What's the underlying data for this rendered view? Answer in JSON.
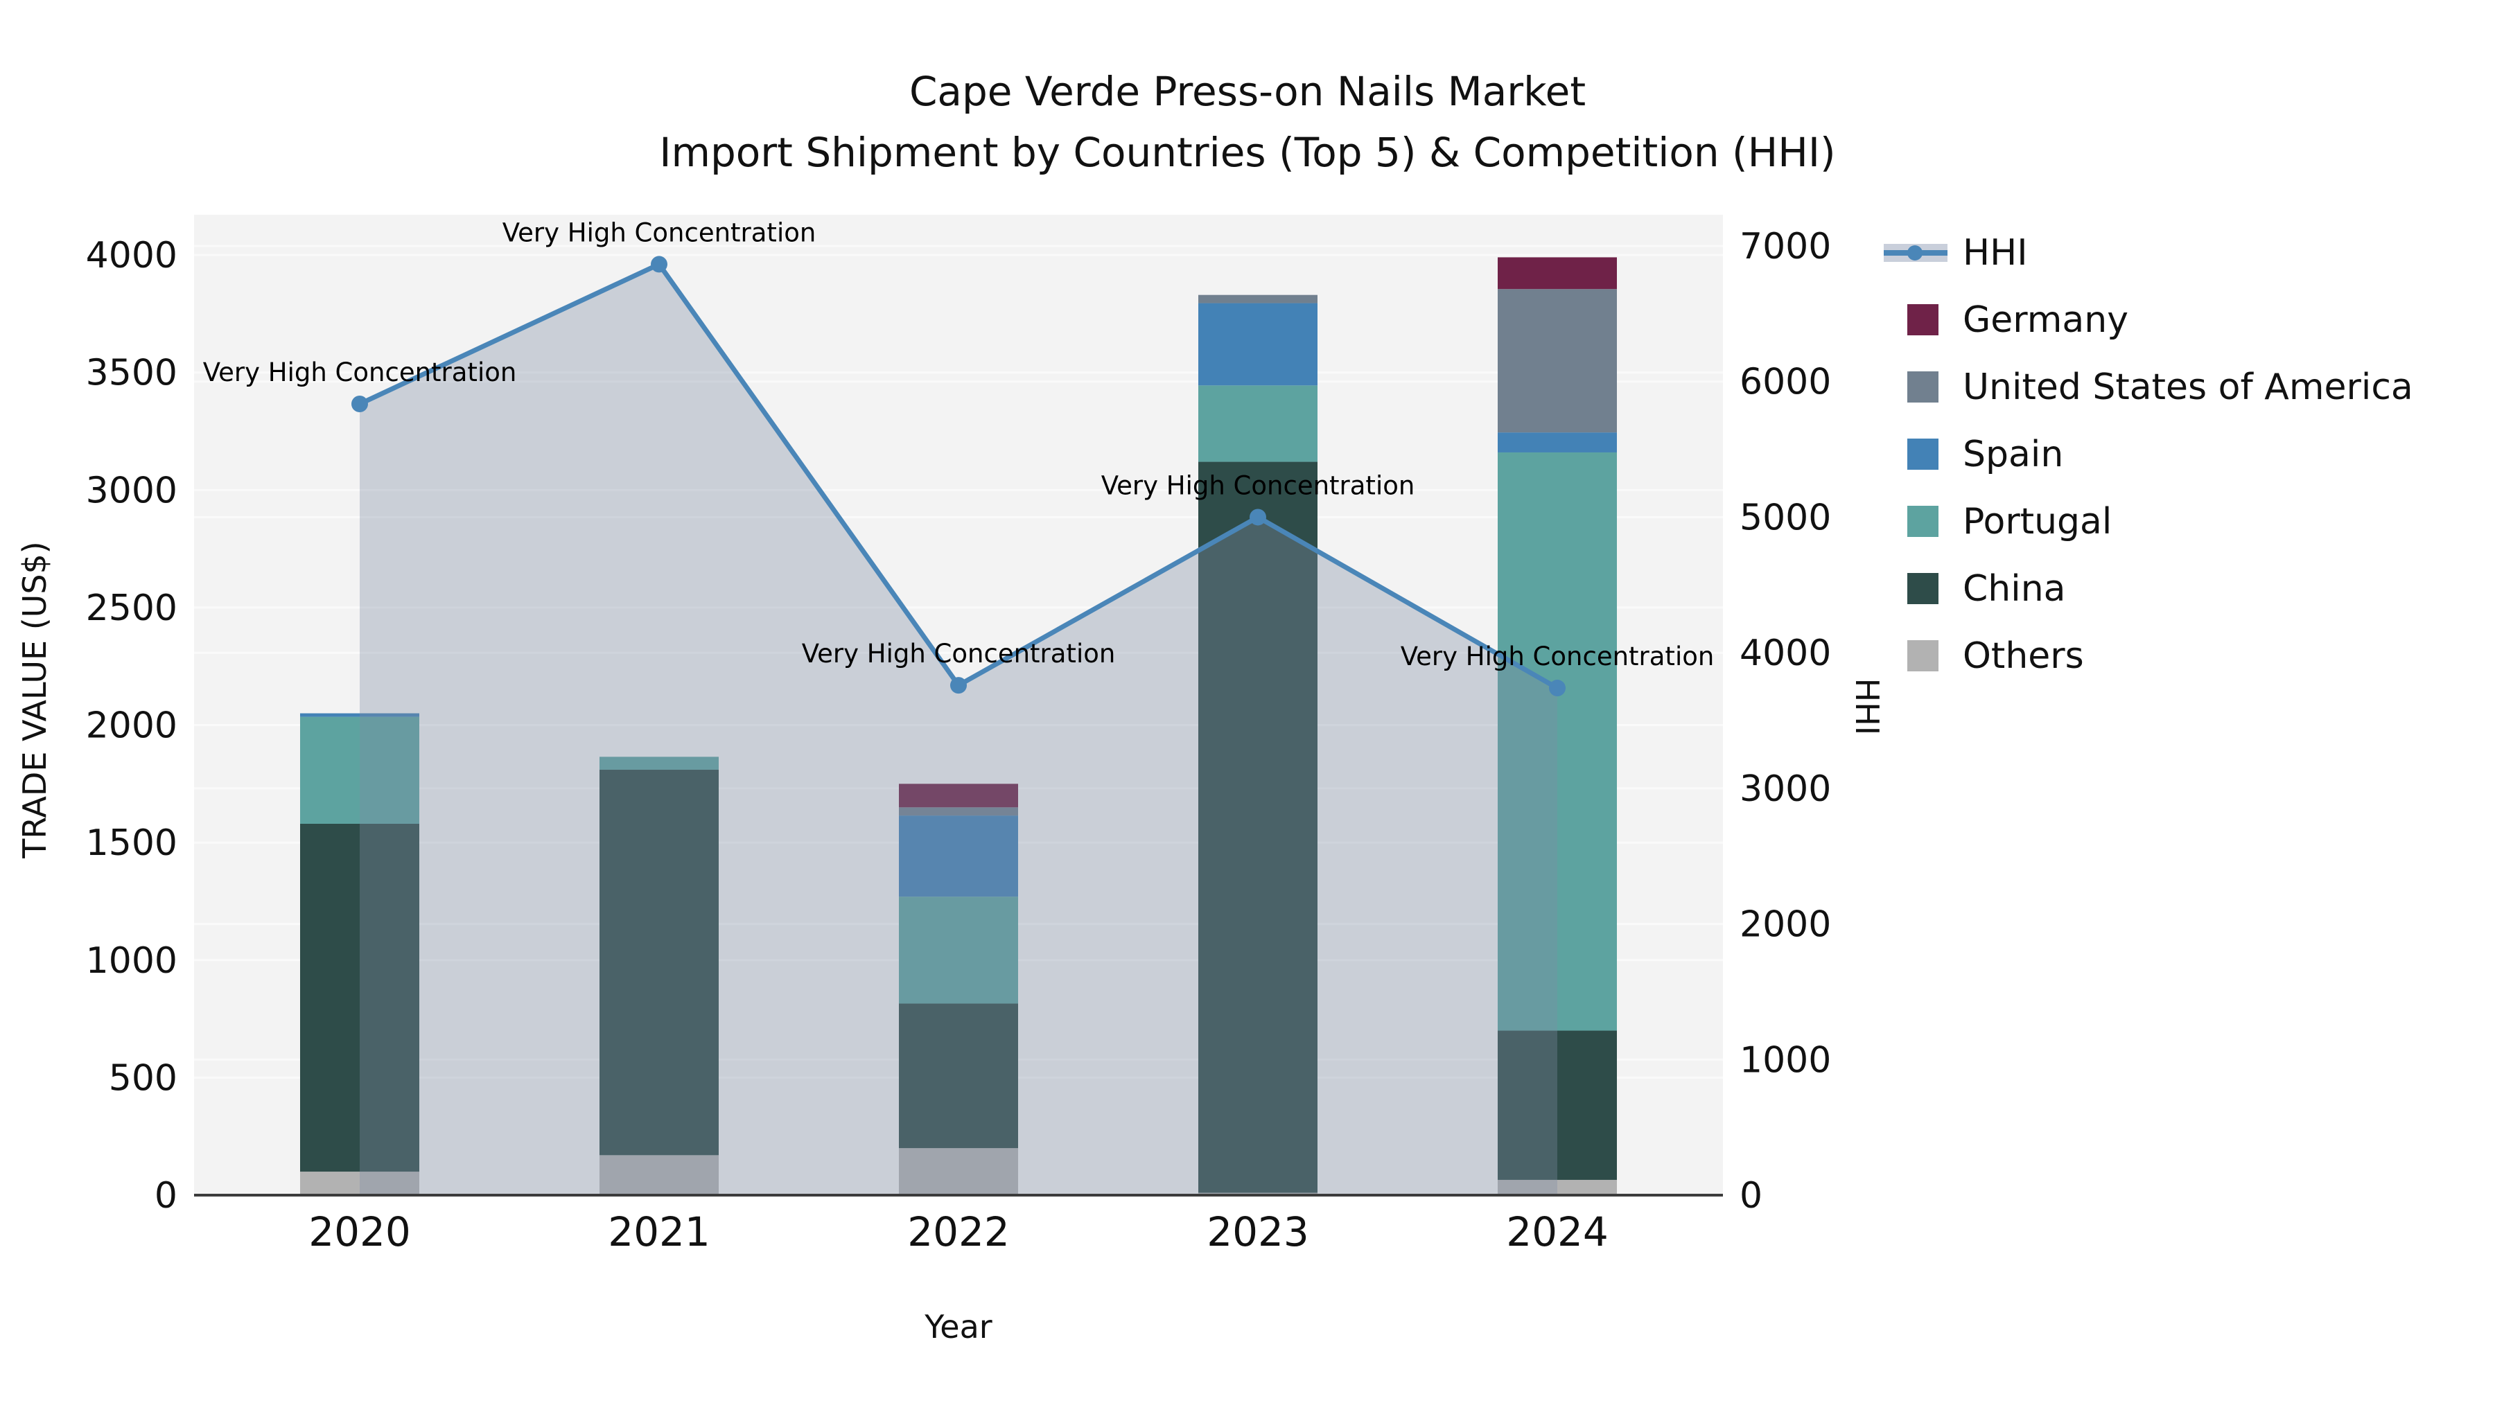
{
  "title": {
    "line1": "Cape Verde Press-on Nails Market",
    "line2": "Import Shipment by Countries (Top 5) & Competition (HHI)"
  },
  "axes": {
    "xlabel": "Year",
    "ylabel_left": "TRADE VALUE (US$)",
    "ylabel_right": "HHI"
  },
  "annotation_text": "Very High Concentration",
  "colors": {
    "hhi_line": "#4a86b8",
    "hhi_area": "#7e8ba4",
    "plot_background": "#f3f3f3",
    "gridline": "#fafafa",
    "axis_line": "#3c3c3c",
    "text": "#111111"
  },
  "legend": [
    {
      "label": "HHI",
      "type": "line",
      "color": "#4a86b8"
    },
    {
      "label": "Germany",
      "type": "swatch",
      "color": "#6f2248"
    },
    {
      "label": "United States of America",
      "type": "swatch",
      "color": "#71808f"
    },
    {
      "label": "Spain",
      "type": "swatch",
      "color": "#4382b6"
    },
    {
      "label": "Portugal",
      "type": "swatch",
      "color": "#5da3a0"
    },
    {
      "label": "China",
      "type": "swatch",
      "color": "#2e4c49"
    },
    {
      "label": "Others",
      "type": "swatch",
      "color": "#b2b2b2"
    }
  ],
  "chart_data": {
    "type": "bar",
    "subtype": "stacked-bars-with-line-overlay",
    "title": "Cape Verde Press-on Nails Market — Import Shipment by Countries (Top 5) & Competition (HHI)",
    "categories": [
      "2020",
      "2021",
      "2022",
      "2023",
      "2024"
    ],
    "series": [
      {
        "name": "Others",
        "color": "#b2b2b2",
        "values": [
          100,
          170,
          200,
          10,
          65
        ]
      },
      {
        "name": "China",
        "color": "#2e4c49",
        "values": [
          1480,
          1640,
          615,
          3110,
          635
        ]
      },
      {
        "name": "Portugal",
        "color": "#5da3a0",
        "values": [
          455,
          55,
          455,
          325,
          2460
        ]
      },
      {
        "name": "Spain",
        "color": "#4382b6",
        "values": [
          15,
          0,
          345,
          350,
          85
        ]
      },
      {
        "name": "United States of America",
        "color": "#71808f",
        "values": [
          0,
          0,
          35,
          35,
          610
        ]
      },
      {
        "name": "Germany",
        "color": "#6f2248",
        "values": [
          0,
          0,
          100,
          0,
          135
        ]
      }
    ],
    "bar_totals": [
      2050,
      1865,
      1750,
      3830,
      3990
    ],
    "line_series": {
      "name": "HHI",
      "axis": "right",
      "color": "#4a86b8",
      "values": [
        5835,
        6865,
        3760,
        5000,
        3740
      ]
    },
    "annotations": [
      {
        "x": "2020",
        "text": "Very High Concentration"
      },
      {
        "x": "2021",
        "text": "Very High Concentration"
      },
      {
        "x": "2022",
        "text": "Very High Concentration"
      },
      {
        "x": "2023",
        "text": "Very High Concentration"
      },
      {
        "x": "2024",
        "text": "Very High Concentration"
      }
    ],
    "xlabel": "Year",
    "ylabel": "TRADE VALUE (US$)",
    "ylabel_right": "HHI",
    "ylim_left": [
      0,
      4171
    ],
    "ylim_right": [
      0,
      7230
    ],
    "yticks_left": [
      0,
      500,
      1000,
      1500,
      2000,
      2500,
      3000,
      3500,
      4000
    ],
    "yticks_right": [
      0,
      1000,
      2000,
      3000,
      4000,
      5000,
      6000,
      7000
    ],
    "grid": true,
    "legend_position": "right"
  }
}
